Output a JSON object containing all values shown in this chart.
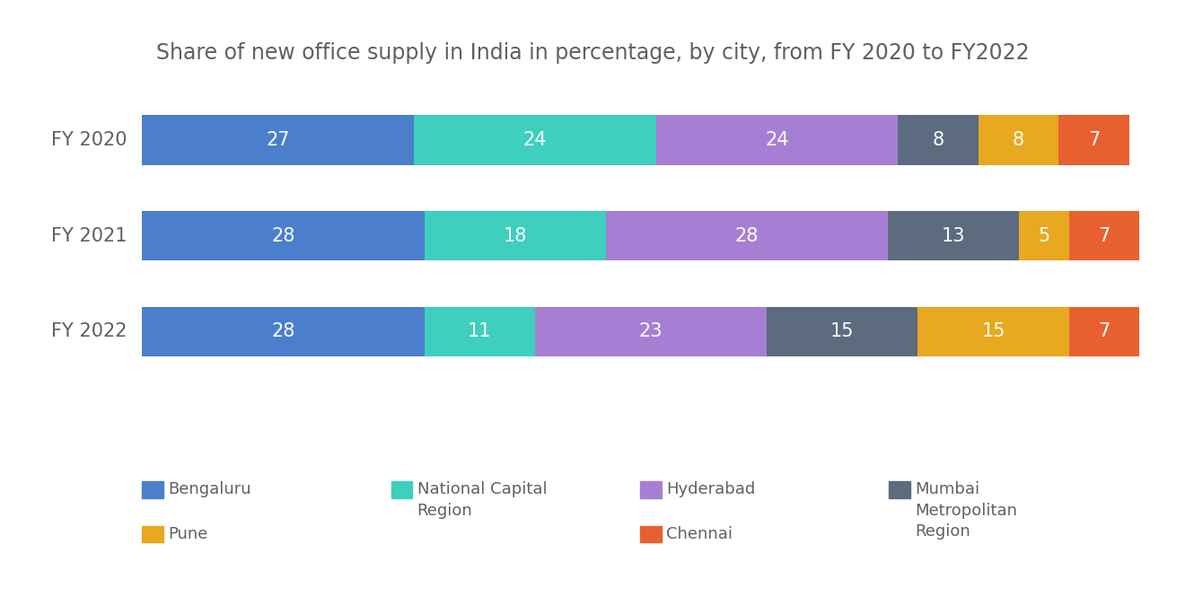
{
  "title": "Share of new office supply in India in percentage, by city, from FY 2020 to FY2022",
  "years": [
    "FY 2020",
    "FY 2021",
    "FY 2022"
  ],
  "categories": [
    "Bengaluru",
    "National Capital\nRegion",
    "Hyderabad",
    "Mumbai\nMetropolitan\nRegion",
    "Pune",
    "Chennai"
  ],
  "legend_order": [
    0,
    1,
    2,
    3,
    4,
    5
  ],
  "colors": [
    "#4B7FCC",
    "#3ECFBE",
    "#A67FD4",
    "#5C6B7E",
    "#E8A820",
    "#E86030"
  ],
  "data": {
    "FY 2020": [
      27,
      24,
      24,
      8,
      8,
      7
    ],
    "FY 2021": [
      28,
      18,
      28,
      13,
      5,
      7
    ],
    "FY 2022": [
      28,
      11,
      23,
      15,
      15,
      7
    ]
  },
  "background_color": "#FFFFFF",
  "title_color": "#606060",
  "label_color": "#FFFFFF",
  "ylabel_color": "#606060",
  "title_fontsize": 17,
  "label_fontsize": 15,
  "ylabel_fontsize": 15,
  "bar_height": 0.52,
  "legend_fontsize": 13
}
